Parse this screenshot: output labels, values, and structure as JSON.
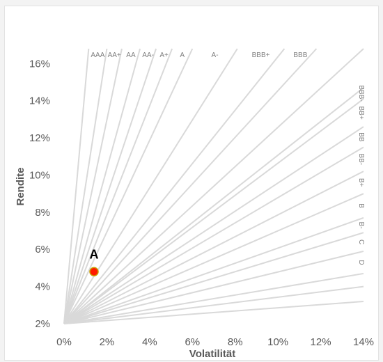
{
  "chart_data": {
    "type": "scatter",
    "title": "",
    "xlabel": "Volatilität",
    "ylabel": "Rendite",
    "xlim": [
      0,
      14
    ],
    "ylim": [
      2,
      16.8
    ],
    "x_ticks": [
      "0%",
      "2%",
      "4%",
      "6%",
      "8%",
      "10%",
      "12%",
      "14%"
    ],
    "y_ticks": [
      "2%",
      "4%",
      "6%",
      "8%",
      "10%",
      "12%",
      "14%",
      "16%"
    ],
    "grid": false,
    "rays": {
      "origin": [
        0,
        2
      ],
      "color": "#d9d9d9",
      "top_bands": [
        "AAA",
        "AA+",
        "AA",
        "AA-",
        "A+",
        "A",
        "A-",
        "BBB+",
        "BBB"
      ],
      "right_bands": [
        "BBB-",
        "BB+",
        "BB",
        "BB-",
        "B+",
        "B",
        "B-",
        "C",
        "D"
      ],
      "top_ends_x": [
        1.15,
        2.0,
        2.7,
        3.55,
        4.3,
        5.05,
        6.0,
        8.1,
        10.3,
        11.8,
        14.0
      ],
      "right_ends_y": [
        14.7,
        14.1,
        12.6,
        11.5,
        10.2,
        9.0,
        7.7,
        6.9,
        5.9,
        4.7,
        4.0,
        3.2
      ]
    },
    "points": [
      {
        "name": "A",
        "x": 1.4,
        "y": 4.8,
        "color": "#ff1a00",
        "edge": "#c8a000"
      }
    ]
  }
}
